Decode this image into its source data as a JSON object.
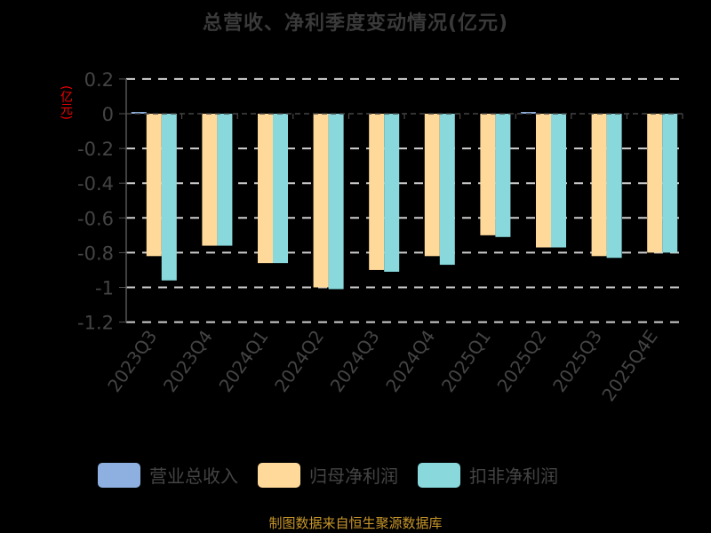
{
  "title": "总营收、净利季度变动情况(亿元)",
  "unit_label": "(亿元)",
  "footer": "制图数据来自恒生聚源数据库",
  "legend": [
    {
      "label": "营业总收入",
      "color": "#8eb0e0"
    },
    {
      "label": "归母净利润",
      "color": "#ffd99a"
    },
    {
      "label": "扣非净利润",
      "color": "#88d8dc"
    }
  ],
  "chart_data": {
    "type": "bar",
    "title": "总营收、净利季度变动情况(亿元)",
    "xlabel": "",
    "ylabel": "(亿元)",
    "ylim": [
      -1.2,
      0.2
    ],
    "yticks": [
      0.2,
      0,
      -0.2,
      -0.4,
      -0.6,
      -0.8,
      -1,
      -1.2
    ],
    "ytick_labels": [
      "0.2",
      "0",
      "-0.2",
      "-0.4",
      "-0.6",
      "-0.8",
      "-1",
      "-1.2"
    ],
    "grid": true,
    "legend_position": "bottom",
    "categories": [
      "2023Q3",
      "2023Q4",
      "2024Q1",
      "2024Q2",
      "2024Q3",
      "2024Q4",
      "2025Q1",
      "2025Q2",
      "2025Q3",
      "2025Q4E"
    ],
    "series": [
      {
        "name": "营业总收入",
        "color": "#8eb0e0",
        "values": [
          0.01,
          0.0,
          0.0,
          0.0,
          0.0,
          0.0,
          0.0,
          0.01,
          0.0,
          0.0
        ]
      },
      {
        "name": "归母净利润",
        "color": "#ffd99a",
        "values": [
          -0.82,
          -0.76,
          -0.86,
          -1.0,
          -0.9,
          -0.82,
          -0.7,
          -0.77,
          -0.82,
          -0.8
        ]
      },
      {
        "name": "扣非净利润",
        "color": "#88d8dc",
        "values": [
          -0.96,
          -0.76,
          -0.86,
          -1.01,
          -0.91,
          -0.87,
          -0.71,
          -0.77,
          -0.83,
          -0.8
        ]
      }
    ]
  }
}
